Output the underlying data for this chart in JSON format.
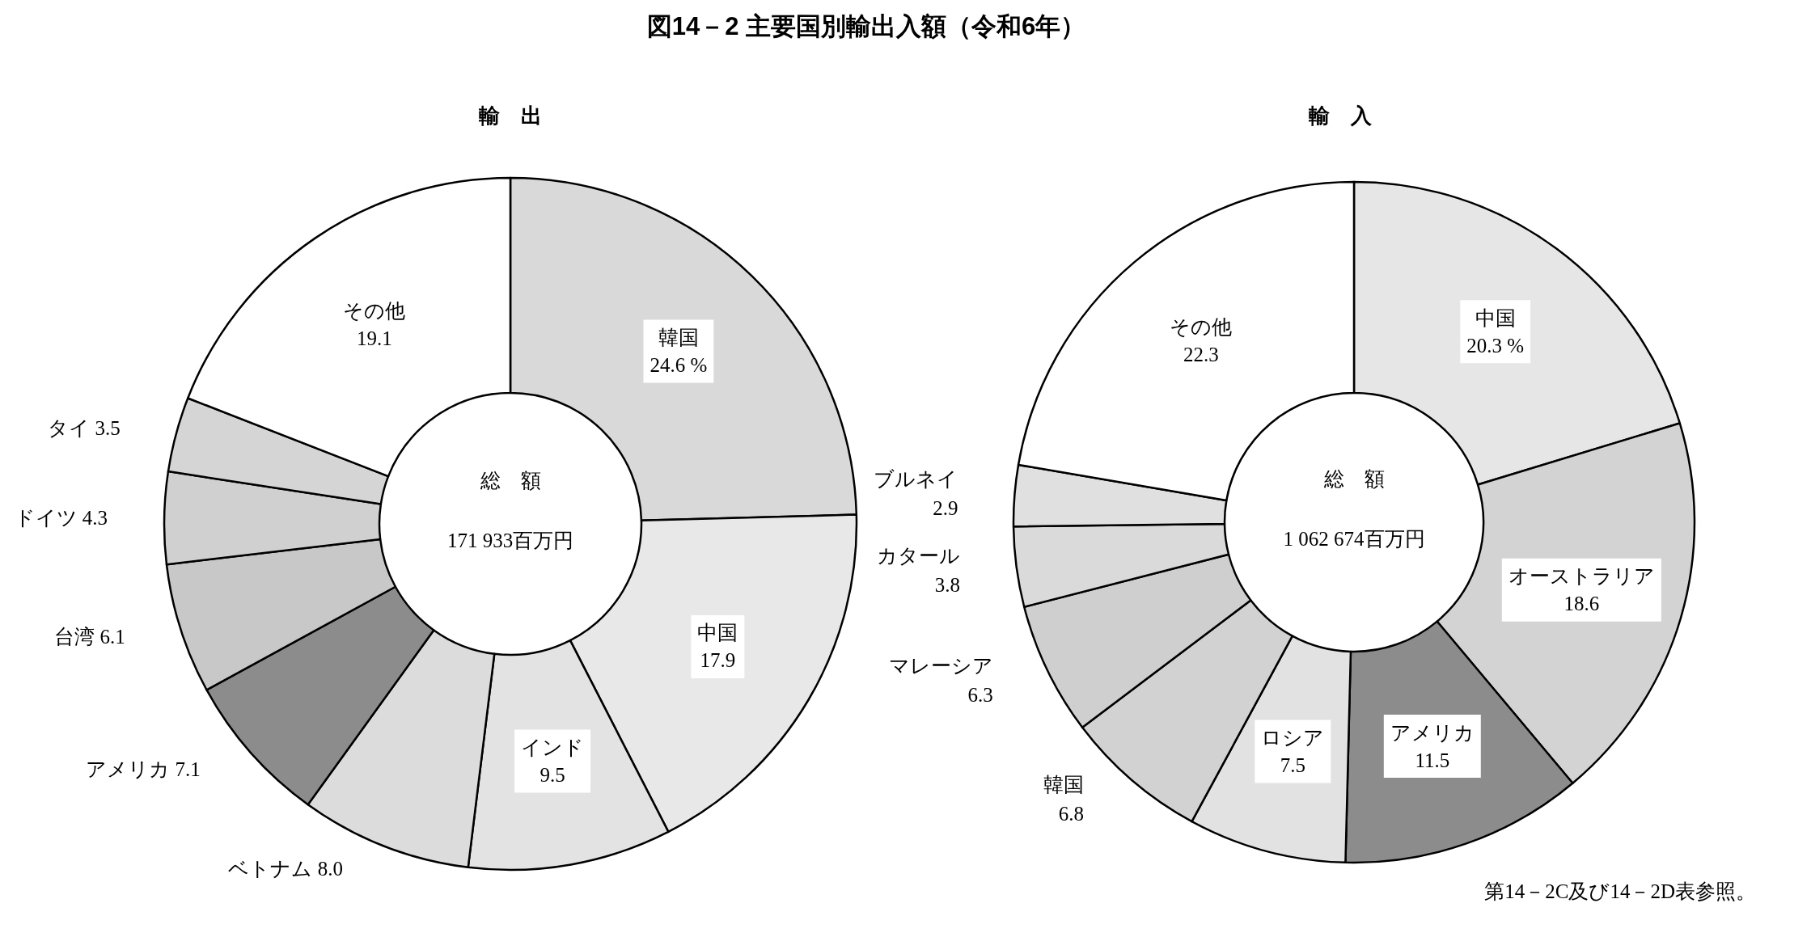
{
  "chart_data": [
    {
      "type": "donut",
      "title": "図14－2 主要国別輸出入額（令和6年）",
      "subtitle": "輸　出",
      "categories": [
        "韓国",
        "中国",
        "インド",
        "ベトナム",
        "アメリカ",
        "台湾",
        "ドイツ",
        "タイ",
        "その他"
      ],
      "values": [
        24.6,
        17.9,
        9.5,
        8.0,
        7.1,
        6.1,
        4.3,
        3.5,
        19.1
      ],
      "value_labels": [
        "24.6 %",
        "17.9",
        "9.5",
        "8.0",
        "7.1",
        "6.1",
        "4.3",
        "3.5",
        "19.1"
      ],
      "colors": [
        "#d9d9d9",
        "#e8e8e8",
        "#e3e3e3",
        "#dcdcdc",
        "#8c8c8c",
        "#c8c8c8",
        "#d0d0d0",
        "#d5d5d5",
        "#ffffff"
      ],
      "annotations": [
        "総　額",
        "171 933百万円"
      ],
      "legend": false
    },
    {
      "type": "donut",
      "subtitle": "輸　入",
      "categories": [
        "中国",
        "オーストラリア",
        "アメリカ",
        "ロシア",
        "韓国",
        "マレーシア",
        "カタール",
        "ブルネイ",
        "その他"
      ],
      "values": [
        20.3,
        18.6,
        11.5,
        7.5,
        6.8,
        6.3,
        3.8,
        2.9,
        22.3
      ],
      "value_labels": [
        "20.3 %",
        "18.6",
        "11.5",
        "7.5",
        "6.8",
        "6.3",
        "3.8",
        "2.9",
        "22.3"
      ],
      "colors": [
        "#e6e6e6",
        "#d3d3d3",
        "#8c8c8c",
        "#e2e2e2",
        "#d2d2d2",
        "#cfcfcf",
        "#dadada",
        "#e0e0e0",
        "#ffffff"
      ],
      "annotations": [
        "総　額",
        "1 062 674百万円",
        "第14－2C及び14－2D表参照。"
      ],
      "legend": false
    }
  ]
}
